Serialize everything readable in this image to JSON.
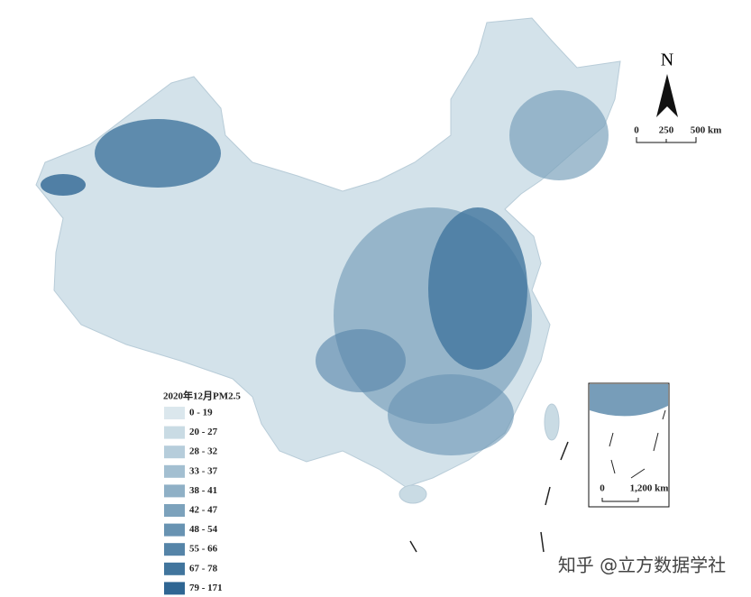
{
  "map": {
    "north_arrow": "N",
    "scale_bar": {
      "labels": [
        "0",
        "250",
        "500 km"
      ]
    },
    "inset": {
      "scale_labels": [
        "0",
        "1,200 km"
      ]
    },
    "legend": {
      "title": "2020年12月PM2.5",
      "items": [
        {
          "label": "0 - 19",
          "color": "#dbe7ed"
        },
        {
          "label": "20 - 27",
          "color": "#c9dbe4"
        },
        {
          "label": "28 - 32",
          "color": "#b6cddb"
        },
        {
          "label": "33 - 37",
          "color": "#a3bfd1"
        },
        {
          "label": "38 - 41",
          "color": "#8fb0c6"
        },
        {
          "label": "42 - 47",
          "color": "#7ca2bc"
        },
        {
          "label": "48 - 54",
          "color": "#6893b2"
        },
        {
          "label": "55 - 66",
          "color": "#5584a8"
        },
        {
          "label": "67 - 78",
          "color": "#41759d"
        },
        {
          "label": "79 - 171",
          "color": "#2f6693"
        }
      ]
    }
  },
  "watermark": "知乎 @立方数据学社"
}
